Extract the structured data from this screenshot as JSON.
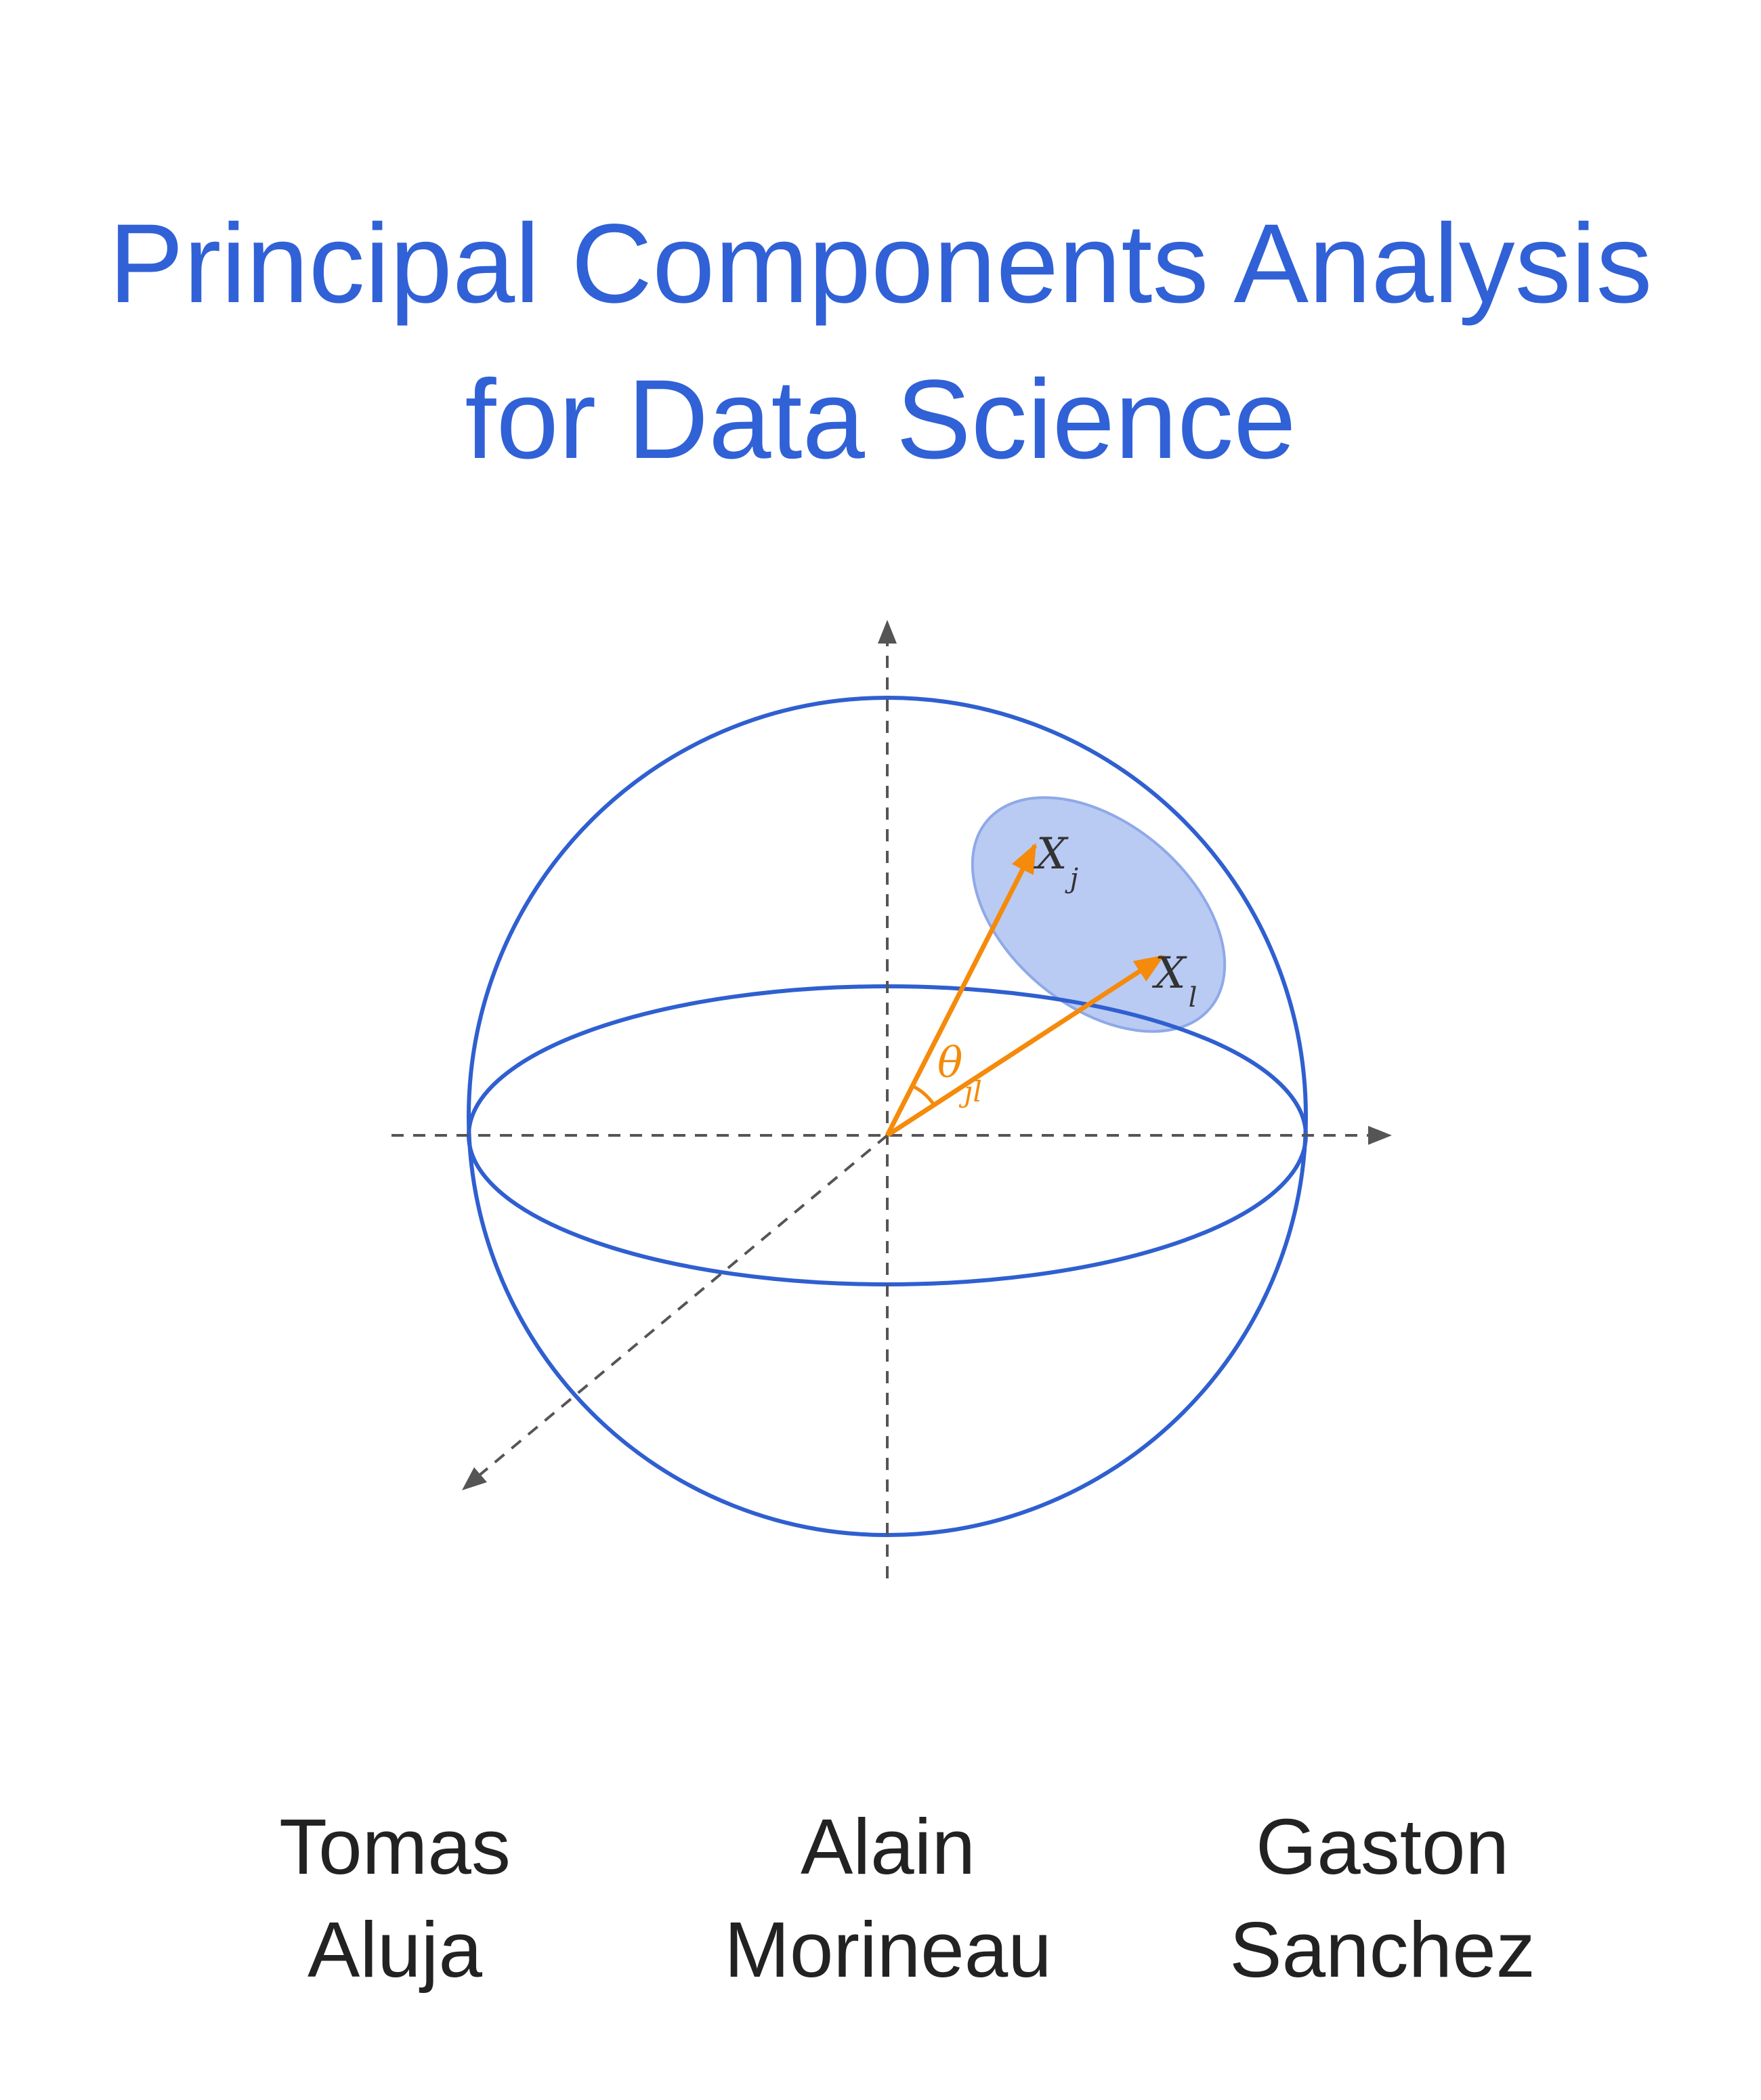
{
  "title": {
    "line1": "Principal Components Analysis",
    "line2": "for Data Science",
    "color": "#3161d6"
  },
  "figure": {
    "labels": {
      "vector_j_main": "X",
      "vector_j_sub": "j",
      "vector_l_main": "X",
      "vector_l_sub": "l",
      "angle_main": "θ",
      "angle_sub": "jl"
    },
    "colors": {
      "sphere": "#2f5fd0",
      "axis": "#555555",
      "vector": "#f58a0b",
      "region_fill": "#b9cbf3",
      "region_stroke": "#8fa9e8",
      "label_text": "#333333"
    }
  },
  "authors": [
    {
      "first": "Tomas",
      "last": "Aluja"
    },
    {
      "first": "Alain",
      "last": "Morineau"
    },
    {
      "first": "Gaston",
      "last": "Sanchez"
    }
  ],
  "text_color": "#222222"
}
